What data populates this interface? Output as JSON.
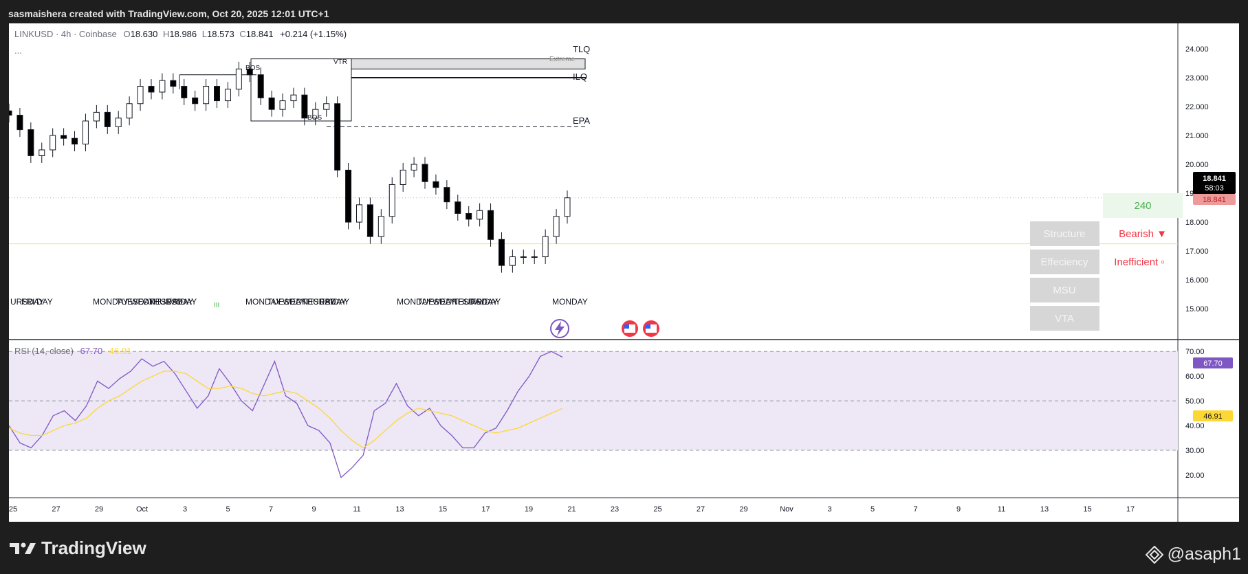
{
  "header": {
    "caption": "sasmaishera created with TradingView.com, Oct 20, 2025 12:01 UTC+1"
  },
  "legend": {
    "symbol": "LINKUSD · 4h · Coinbase",
    "o_label": "O",
    "o_value": "18.630",
    "h_label": "H",
    "h_value": "18.986",
    "l_label": "L",
    "l_value": "18.573",
    "c_label": "C",
    "c_value": "18.841",
    "change": "+0.214 (+1.15%)",
    "more": "..."
  },
  "levels": {
    "tlq": "TLQ",
    "extreme": "Extreme",
    "ilq": "ILQ",
    "epa": "EPA",
    "vtr": "VTR",
    "bos1": "BOS",
    "bos2": "BOS"
  },
  "session_labels": [
    "URSDAY",
    "FRI",
    "DAY",
    "MONDAY",
    "TUESDAY",
    "WEDNESDAY",
    "THURSDAY",
    "FRIDAY",
    "MONDAY",
    "TUESDAY",
    "WEDNESDAY",
    "THURSDAY",
    "FRIDAY",
    "MONDAY",
    "TUESDAY",
    "WEDNESDAY",
    "THURSDAY",
    "FRIDAY",
    "MONDAY"
  ],
  "panel": {
    "timeframe": "240",
    "structure_label": "Structure",
    "structure_value": "Bearish ▼",
    "efficiency_label": "Effeciency",
    "efficiency_value": "Inefficient ▫",
    "msu_label": "MSU",
    "vta_label": "VTA"
  },
  "price_badge": {
    "price": "18.841",
    "countdown": "58:03",
    "price2": "18.841"
  },
  "rsi": {
    "label": "RSI (14, close)",
    "value1": "67.70",
    "value2": "46.91",
    "badge1": "67.70",
    "badge2": "46.91",
    "level_70": "70.00"
  },
  "footer": {
    "brand": "TradingView",
    "handle": "@asaph1"
  },
  "colors": {
    "bull": "#ffffff",
    "bear": "#000000",
    "rsi_line": "#7e57c2",
    "rsi_ma": "#fdd835",
    "rsi_band": "#ede7f6",
    "bearish": "#f23645",
    "green": "#4caf50"
  },
  "chart_data": [
    {
      "type": "candlestick",
      "title": "LINKUSD · 4h · Coinbase",
      "x_ticks": [
        "25",
        "27",
        "29",
        "Oct",
        "3",
        "5",
        "7",
        "9",
        "11",
        "13",
        "15",
        "17",
        "19",
        "21",
        "23",
        "25",
        "27",
        "29",
        "Nov",
        "3",
        "5",
        "7",
        "9",
        "11",
        "13",
        "15",
        "17"
      ],
      "y_ticks": [
        15.0,
        16.0,
        17.0,
        18.0,
        19.0,
        20.0,
        21.0,
        22.0,
        23.0,
        24.0
      ],
      "ylim": [
        14.6,
        24.45
      ],
      "close_series": [
        21.7,
        21.2,
        20.3,
        20.5,
        21.0,
        20.9,
        20.7,
        21.5,
        21.8,
        21.3,
        21.6,
        22.1,
        22.7,
        22.5,
        22.9,
        22.7,
        22.3,
        22.1,
        22.7,
        22.2,
        22.6,
        23.3,
        23.1,
        22.3,
        21.9,
        22.2,
        22.4,
        21.6,
        21.9,
        22.1,
        19.8,
        18.0,
        18.6,
        17.5,
        18.2,
        19.3,
        19.8,
        20.0,
        19.4,
        19.2,
        18.7,
        18.3,
        18.1,
        18.4,
        17.4,
        16.5,
        16.8,
        16.8,
        16.8,
        17.5,
        18.2,
        18.841
      ],
      "current_price": 18.841,
      "levels": {
        "TLQ": 23.65,
        "ILQ": 23.0,
        "EPA": 21.3
      }
    },
    {
      "type": "line",
      "title": "RSI (14, close)",
      "y_ticks": [
        20.0,
        30.0,
        40.0,
        50.0,
        60.0,
        70.0
      ],
      "ylim": [
        15,
        72
      ],
      "series": [
        {
          "name": "RSI",
          "values": [
            40,
            33,
            31,
            36,
            44,
            46,
            42,
            48,
            58,
            55,
            59,
            62,
            67,
            64,
            66,
            61,
            54,
            47,
            52,
            63,
            57,
            50,
            46,
            56,
            66,
            52,
            49,
            40,
            38,
            33,
            19,
            23,
            28,
            46,
            49,
            57,
            48,
            44,
            47,
            40,
            36,
            31,
            31,
            37,
            39,
            46,
            54,
            60,
            68,
            70,
            67.7
          ]
        },
        {
          "name": "MA",
          "values": [
            39,
            37,
            36,
            36,
            38,
            40,
            41,
            43,
            47,
            50,
            52,
            55,
            58,
            60,
            62,
            62,
            61,
            58,
            55,
            55,
            56,
            55,
            53,
            52,
            53,
            54,
            53,
            50,
            47,
            43,
            38,
            34,
            31,
            34,
            38,
            42,
            45,
            47,
            46,
            45,
            44,
            42,
            40,
            38,
            37,
            38,
            39,
            41,
            43,
            45,
            46.91
          ]
        }
      ]
    }
  ]
}
